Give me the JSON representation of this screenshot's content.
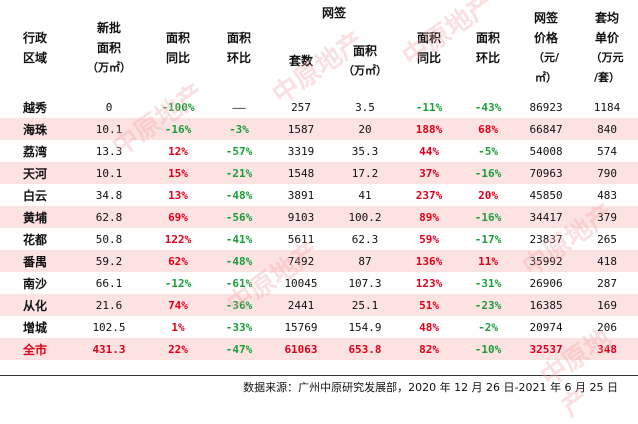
{
  "headers": {
    "region": [
      "行政",
      "区域"
    ],
    "new_area": [
      "新批",
      "面积",
      "（万㎡）"
    ],
    "new_yoy": [
      "面积",
      "同比"
    ],
    "new_mom": [
      "面积",
      "环比"
    ],
    "net_sign": "网签",
    "net_units": "套数",
    "net_area": [
      "面积",
      "（万㎡）"
    ],
    "net_yoy": [
      "面积",
      "同比"
    ],
    "net_mom": [
      "面积",
      "环比"
    ],
    "price": [
      "网签",
      "价格",
      "（元/",
      "㎡）"
    ],
    "unit_price": [
      "套均",
      "单价",
      "（万元",
      "/套）"
    ]
  },
  "rows": [
    {
      "region": "越秀",
      "new_area": "0",
      "new_yoy": "-100%",
      "new_yoy_c": "green",
      "new_mom": "——",
      "new_mom_c": "black",
      "units": "257",
      "area": "3.5",
      "yoy": "-11%",
      "yoy_c": "green",
      "mom": "-43%",
      "mom_c": "green",
      "price": "86923",
      "unit": "1184"
    },
    {
      "region": "海珠",
      "new_area": "10.1",
      "new_yoy": "-16%",
      "new_yoy_c": "green",
      "new_mom": "-3%",
      "new_mom_c": "green",
      "units": "1587",
      "area": "20",
      "yoy": "188%",
      "yoy_c": "red",
      "mom": "68%",
      "mom_c": "red",
      "price": "66847",
      "unit": "840"
    },
    {
      "region": "荔湾",
      "new_area": "13.3",
      "new_yoy": "12%",
      "new_yoy_c": "red",
      "new_mom": "-57%",
      "new_mom_c": "green",
      "units": "3319",
      "area": "35.3",
      "yoy": "44%",
      "yoy_c": "red",
      "mom": "-5%",
      "mom_c": "green",
      "price": "54008",
      "unit": "574"
    },
    {
      "region": "天河",
      "new_area": "10.1",
      "new_yoy": "15%",
      "new_yoy_c": "red",
      "new_mom": "-21%",
      "new_mom_c": "green",
      "units": "1548",
      "area": "17.2",
      "yoy": "37%",
      "yoy_c": "red",
      "mom": "-16%",
      "mom_c": "green",
      "price": "70963",
      "unit": "790"
    },
    {
      "region": "白云",
      "new_area": "34.8",
      "new_yoy": "13%",
      "new_yoy_c": "red",
      "new_mom": "-48%",
      "new_mom_c": "green",
      "units": "3891",
      "area": "41",
      "yoy": "237%",
      "yoy_c": "red",
      "mom": "20%",
      "mom_c": "red",
      "price": "45850",
      "unit": "483"
    },
    {
      "region": "黄埔",
      "new_area": "62.8",
      "new_yoy": "69%",
      "new_yoy_c": "red",
      "new_mom": "-56%",
      "new_mom_c": "green",
      "units": "9103",
      "area": "100.2",
      "yoy": "89%",
      "yoy_c": "red",
      "mom": "-16%",
      "mom_c": "green",
      "price": "34417",
      "unit": "379"
    },
    {
      "region": "花都",
      "new_area": "50.8",
      "new_yoy": "122%",
      "new_yoy_c": "red",
      "new_mom": "-41%",
      "new_mom_c": "green",
      "units": "5611",
      "area": "62.3",
      "yoy": "59%",
      "yoy_c": "red",
      "mom": "-17%",
      "mom_c": "green",
      "price": "23837",
      "unit": "265"
    },
    {
      "region": "番禺",
      "new_area": "59.2",
      "new_yoy": "62%",
      "new_yoy_c": "red",
      "new_mom": "-48%",
      "new_mom_c": "green",
      "units": "7492",
      "area": "87",
      "yoy": "136%",
      "yoy_c": "red",
      "mom": "11%",
      "mom_c": "red",
      "price": "35992",
      "unit": "418"
    },
    {
      "region": "南沙",
      "new_area": "66.1",
      "new_yoy": "-12%",
      "new_yoy_c": "green",
      "new_mom": "-61%",
      "new_mom_c": "green",
      "units": "10045",
      "area": "107.3",
      "yoy": "123%",
      "yoy_c": "red",
      "mom": "-31%",
      "mom_c": "green",
      "price": "26906",
      "unit": "287"
    },
    {
      "region": "从化",
      "new_area": "21.6",
      "new_yoy": "74%",
      "new_yoy_c": "red",
      "new_mom": "-36%",
      "new_mom_c": "green",
      "units": "2441",
      "area": "25.1",
      "yoy": "51%",
      "yoy_c": "red",
      "mom": "-23%",
      "mom_c": "green",
      "price": "16385",
      "unit": "169"
    },
    {
      "region": "增城",
      "new_area": "102.5",
      "new_yoy": "1%",
      "new_yoy_c": "red",
      "new_mom": "-33%",
      "new_mom_c": "green",
      "units": "15769",
      "area": "154.9",
      "yoy": "48%",
      "yoy_c": "red",
      "mom": "-2%",
      "mom_c": "green",
      "price": "20974",
      "unit": "206"
    }
  ],
  "total": {
    "region": "全市",
    "new_area": "431.3",
    "new_yoy": "22%",
    "new_mom": "-47%",
    "units": "61063",
    "area": "653.8",
    "yoy": "82%",
    "mom": "-10%",
    "price": "32537",
    "unit": "348"
  },
  "footer": "数据来源：广州中原研究发展部，2020 年 12 月 26 日-2021 年 6 月 25 日",
  "watermark": "中原地产",
  "colors": {
    "red": "#e0001a",
    "green": "#1a9e3a",
    "stripe": "#fde2e2"
  }
}
